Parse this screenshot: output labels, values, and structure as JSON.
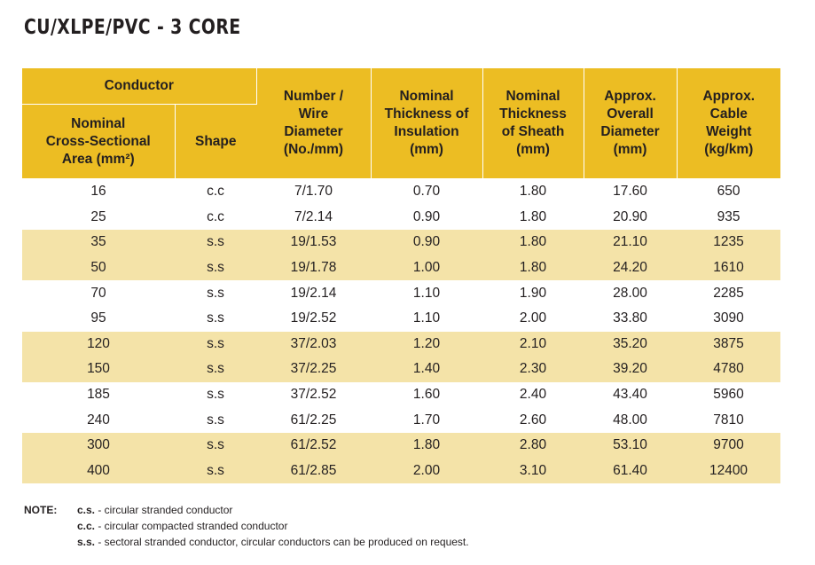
{
  "title": "CU/XLPE/PVC - 3 CORE",
  "table": {
    "group_header": "Conductor",
    "headers": {
      "area_line1": "Nominal",
      "area_line2": "Cross-Sectional",
      "area_line3": "Area (mm²)",
      "shape": "Shape",
      "wire": [
        "Number /",
        "Wire",
        "Diameter",
        "(No./mm)"
      ],
      "insulation": [
        "Nominal",
        "Thickness of",
        "Insulation",
        "(mm)"
      ],
      "sheath": [
        "Nominal",
        "Thickness",
        "of Sheath",
        "(mm)"
      ],
      "diameter": [
        "Approx.",
        "Overall",
        "Diameter",
        "(mm)"
      ],
      "weight": [
        "Approx.",
        "Cable",
        "Weight",
        "(kg/km)"
      ]
    },
    "rows": [
      {
        "area": "16",
        "shape": "c.c",
        "wire": "7/1.70",
        "insulation": "0.70",
        "sheath": "1.80",
        "diameter": "17.60",
        "weight": "650"
      },
      {
        "area": "25",
        "shape": "c.c",
        "wire": "7/2.14",
        "insulation": "0.90",
        "sheath": "1.80",
        "diameter": "20.90",
        "weight": "935"
      },
      {
        "area": "35",
        "shape": "s.s",
        "wire": "19/1.53",
        "insulation": "0.90",
        "sheath": "1.80",
        "diameter": "21.10",
        "weight": "1235"
      },
      {
        "area": "50",
        "shape": "s.s",
        "wire": "19/1.78",
        "insulation": "1.00",
        "sheath": "1.80",
        "diameter": "24.20",
        "weight": "1610"
      },
      {
        "area": "70",
        "shape": "s.s",
        "wire": "19/2.14",
        "insulation": "1.10",
        "sheath": "1.90",
        "diameter": "28.00",
        "weight": "2285"
      },
      {
        "area": "95",
        "shape": "s.s",
        "wire": "19/2.52",
        "insulation": "1.10",
        "sheath": "2.00",
        "diameter": "33.80",
        "weight": "3090"
      },
      {
        "area": "120",
        "shape": "s.s",
        "wire": "37/2.03",
        "insulation": "1.20",
        "sheath": "2.10",
        "diameter": "35.20",
        "weight": "3875"
      },
      {
        "area": "150",
        "shape": "s.s",
        "wire": "37/2.25",
        "insulation": "1.40",
        "sheath": "2.30",
        "diameter": "39.20",
        "weight": "4780"
      },
      {
        "area": "185",
        "shape": "s.s",
        "wire": "37/2.52",
        "insulation": "1.60",
        "sheath": "2.40",
        "diameter": "43.40",
        "weight": "5960"
      },
      {
        "area": "240",
        "shape": "s.s",
        "wire": "61/2.25",
        "insulation": "1.70",
        "sheath": "2.60",
        "diameter": "48.00",
        "weight": "7810"
      },
      {
        "area": "300",
        "shape": "s.s",
        "wire": "61/2.52",
        "insulation": "1.80",
        "sheath": "2.80",
        "diameter": "53.10",
        "weight": "9700"
      },
      {
        "area": "400",
        "shape": "s.s",
        "wire": "61/2.85",
        "insulation": "2.00",
        "sheath": "3.10",
        "diameter": "61.40",
        "weight": "12400"
      }
    ]
  },
  "notes": {
    "label": "NOTE:",
    "items": [
      {
        "code": "c.s.",
        "text": " - circular stranded conductor"
      },
      {
        "code": "c.c.",
        "text": " - circular compacted stranded conductor"
      },
      {
        "code": "s.s.",
        "text": " - sectoral stranded conductor, circular conductors can be produced on request."
      }
    ]
  },
  "colors": {
    "header_bg": "#ecbd23",
    "band_bg": "#f4e3a8",
    "text": "#231f20"
  }
}
